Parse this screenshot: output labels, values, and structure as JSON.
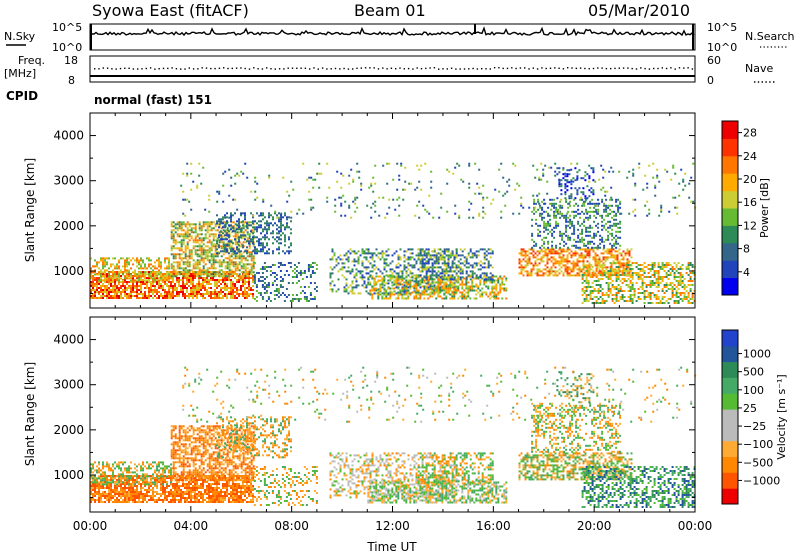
{
  "header": {
    "station": "Syowa East (fitACF)",
    "beam": "Beam 01",
    "date": "05/Mar/2010"
  },
  "noise_panel": {
    "left_label": "N.Sky",
    "right_label": "N.Search",
    "left_ticks": [
      "10^5",
      "10^0"
    ],
    "right_ticks": [
      "10^5",
      "10^0"
    ]
  },
  "freq_panel": {
    "left_label_top": "Freq.",
    "left_label_unit": "[MHz]",
    "left_ticks": [
      "18",
      "8"
    ],
    "right_label": "Nave",
    "right_ticks": [
      "60",
      "0"
    ]
  },
  "cpid_panel": {
    "label": "CPID",
    "value": "normal (fast) 151"
  },
  "colors": {
    "power_scale": [
      "#0000ee",
      "#2244bb",
      "#336688",
      "#2e8b57",
      "#66bb33",
      "#cccc33",
      "#ffaa00",
      "#ff7700",
      "#ff3300",
      "#ee0000"
    ],
    "velocity_scale": [
      "#ee0000",
      "#ff5500",
      "#ff8800",
      "#ffaa33",
      "#bbbbbb",
      "#bbbbbb",
      "#55bb33",
      "#44aa66",
      "#2e8b57",
      "#225599",
      "#2244cc"
    ]
  },
  "chart_data": [
    {
      "type": "heatmap",
      "name": "power",
      "ylabel": "Slant Range [km]",
      "yticks": [
        "1000",
        "2000",
        "3000",
        "4000"
      ],
      "ylim": [
        180,
        4500
      ],
      "xticks": [
        "00:00",
        "04:00",
        "08:00",
        "12:00",
        "16:00",
        "20:00",
        "00:00"
      ],
      "xlim_hours": [
        0,
        24
      ],
      "colorbar_label": "Power [dB]",
      "colorbar_ticks": [
        "4",
        "8",
        "12",
        "16",
        "20",
        "24",
        "28"
      ],
      "colorbar_range": [
        0,
        30
      ]
    },
    {
      "type": "heatmap",
      "name": "velocity",
      "ylabel": "Slant Range [km]",
      "yticks": [
        "1000",
        "2000",
        "3000",
        "4000"
      ],
      "ylim": [
        180,
        4500
      ],
      "xlabel": "Time UT",
      "xticks": [
        "00:00",
        "04:00",
        "08:00",
        "12:00",
        "16:00",
        "20:00",
        "00:00"
      ],
      "xlim_hours": [
        0,
        24
      ],
      "colorbar_label": "Velocity [m s⁻¹]",
      "colorbar_ticks": [
        "1000",
        "500",
        "100",
        "25",
        "−25",
        "−100",
        "−500",
        "−1000"
      ]
    }
  ]
}
